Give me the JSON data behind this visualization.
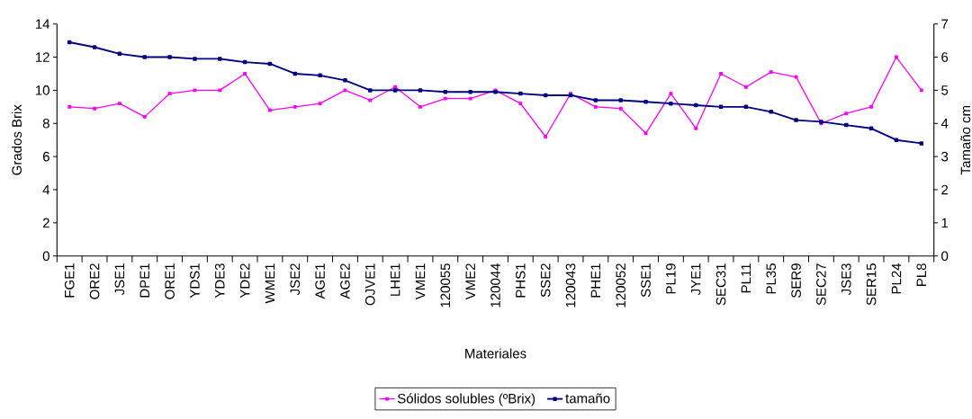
{
  "chart_data": {
    "type": "line",
    "xlabel": "Materiales",
    "ylabel": "Grados Brix",
    "y2label": "Tamaño cm",
    "categories": [
      "FGE1",
      "ORE2",
      "JSE1",
      "DPE1",
      "ORE1",
      "YDS1",
      "YDE3",
      "YDE2",
      "WME1",
      "JSE2",
      "AGE1",
      "AGE2",
      "OJVE1",
      "LHE1",
      "VME1",
      "120055",
      "VME2",
      "120044",
      "PHS1",
      "SSE2",
      "120043",
      "PHE1",
      "120052",
      "SSE1",
      "PL19",
      "JYE1",
      "SEC31",
      "PL11",
      "PL35",
      "SER9",
      "SEC27",
      "JSE3",
      "SER15",
      "PL24",
      "PL8"
    ],
    "series": [
      {
        "name": "Sólidos solubles (ºBrix)",
        "color": "#ff00ff",
        "values": [
          9.0,
          8.9,
          9.2,
          8.4,
          9.8,
          10.0,
          10.0,
          11.0,
          8.8,
          9.0,
          9.2,
          10.0,
          9.4,
          10.2,
          9.0,
          9.5,
          9.5,
          10.0,
          9.2,
          7.2,
          9.8,
          9.0,
          8.9,
          7.4,
          9.8,
          7.7,
          11.0,
          10.2,
          11.1,
          10.8,
          8.0,
          8.6,
          9.0,
          12.0,
          10.0
        ]
      },
      {
        "name": "tamaño",
        "color": "#000080",
        "axis": "y2",
        "values": [
          6.45,
          6.3,
          6.1,
          6.0,
          6.0,
          5.95,
          5.95,
          5.85,
          5.8,
          5.5,
          5.45,
          5.3,
          5.0,
          5.0,
          5.0,
          4.95,
          4.95,
          4.95,
          4.9,
          4.85,
          4.85,
          4.7,
          4.7,
          4.65,
          4.6,
          4.55,
          4.5,
          4.5,
          4.35,
          4.1,
          4.05,
          3.95,
          3.85,
          3.5,
          3.4
        ]
      }
    ],
    "ylim": [
      0,
      14
    ],
    "yticks": [
      0,
      2,
      4,
      6,
      8,
      10,
      12,
      14
    ],
    "y2lim": [
      0,
      7
    ],
    "y2ticks": [
      0,
      1,
      2,
      3,
      4,
      5,
      6,
      7
    ],
    "legend": "bottom",
    "marker": "square",
    "line_style": "solid"
  }
}
